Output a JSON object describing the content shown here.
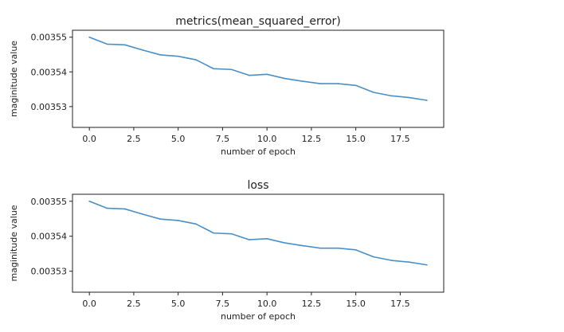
{
  "chart_data": [
    {
      "type": "line",
      "title": "metrics(mean_squared_error)",
      "xlabel": "number of epoch",
      "ylabel": "maginitude value",
      "xlim": [
        -0.95,
        19.95
      ],
      "ylim": [
        0.003524,
        0.003552
      ],
      "xticks": [
        0.0,
        2.5,
        5.0,
        7.5,
        10.0,
        12.5,
        15.0,
        17.5
      ],
      "xtick_labels": [
        "0.0",
        "2.5",
        "5.0",
        "7.5",
        "10.0",
        "12.5",
        "15.0",
        "17.5"
      ],
      "yticks": [
        0.00353,
        0.00354,
        0.00355
      ],
      "ytick_labels": [
        "0.00353",
        "0.00354",
        "0.00355"
      ],
      "grid": false,
      "color": "#4a90c8",
      "series": [
        {
          "x": [
            0,
            1,
            2,
            3,
            4,
            5,
            6,
            7,
            8,
            9,
            10,
            11,
            12,
            13,
            14,
            15,
            16,
            17,
            18,
            19
          ],
          "values": [
            0.00355,
            0.003548,
            0.0035478,
            0.0035463,
            0.0035449,
            0.0035445,
            0.0035435,
            0.0035409,
            0.0035407,
            0.003539,
            0.0035393,
            0.0035381,
            0.0035373,
            0.0035366,
            0.0035366,
            0.0035361,
            0.0035341,
            0.0035331,
            0.0035326,
            0.0035318
          ]
        }
      ]
    },
    {
      "type": "line",
      "title": "loss",
      "xlabel": "number of epoch",
      "ylabel": "maginitude value",
      "xlim": [
        -0.95,
        19.95
      ],
      "ylim": [
        0.003524,
        0.003552
      ],
      "xticks": [
        0.0,
        2.5,
        5.0,
        7.5,
        10.0,
        12.5,
        15.0,
        17.5
      ],
      "xtick_labels": [
        "0.0",
        "2.5",
        "5.0",
        "7.5",
        "10.0",
        "12.5",
        "15.0",
        "17.5"
      ],
      "yticks": [
        0.00353,
        0.00354,
        0.00355
      ],
      "ytick_labels": [
        "0.00353",
        "0.00354",
        "0.00355"
      ],
      "grid": false,
      "color": "#4a90c8",
      "series": [
        {
          "x": [
            0,
            1,
            2,
            3,
            4,
            5,
            6,
            7,
            8,
            9,
            10,
            11,
            12,
            13,
            14,
            15,
            16,
            17,
            18,
            19
          ],
          "values": [
            0.00355,
            0.003548,
            0.0035478,
            0.0035463,
            0.0035449,
            0.0035445,
            0.0035435,
            0.0035409,
            0.0035407,
            0.003539,
            0.0035393,
            0.0035381,
            0.0035373,
            0.0035366,
            0.0035366,
            0.0035361,
            0.0035341,
            0.0035331,
            0.0035326,
            0.0035318
          ]
        }
      ]
    }
  ]
}
